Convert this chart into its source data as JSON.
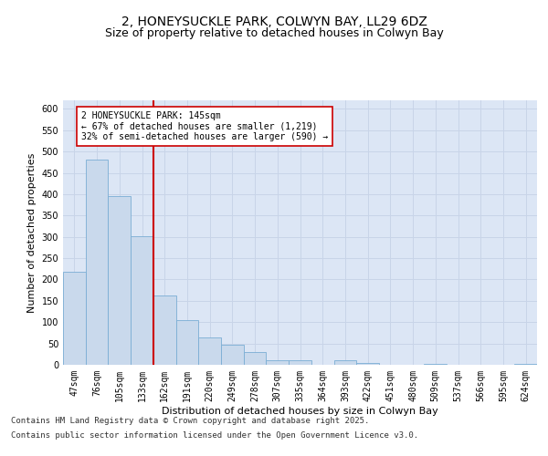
{
  "title_line1": "2, HONEYSUCKLE PARK, COLWYN BAY, LL29 6DZ",
  "title_line2": "Size of property relative to detached houses in Colwyn Bay",
  "xlabel": "Distribution of detached houses by size in Colwyn Bay",
  "ylabel": "Number of detached properties",
  "categories": [
    "47sqm",
    "76sqm",
    "105sqm",
    "133sqm",
    "162sqm",
    "191sqm",
    "220sqm",
    "249sqm",
    "278sqm",
    "307sqm",
    "335sqm",
    "364sqm",
    "393sqm",
    "422sqm",
    "451sqm",
    "480sqm",
    "509sqm",
    "537sqm",
    "566sqm",
    "595sqm",
    "624sqm"
  ],
  "values": [
    218,
    480,
    395,
    302,
    163,
    105,
    65,
    47,
    30,
    10,
    10,
    0,
    10,
    5,
    0,
    0,
    3,
    0,
    0,
    0,
    3
  ],
  "bar_color": "#c9d9ec",
  "bar_edge_color": "#7aadd4",
  "vline_x_index": 3,
  "vline_color": "#cc0000",
  "annotation_text": "2 HONEYSUCKLE PARK: 145sqm\n← 67% of detached houses are smaller (1,219)\n32% of semi-detached houses are larger (590) →",
  "annotation_box_color": "#ffffff",
  "annotation_box_edge": "#cc0000",
  "ylim": [
    0,
    620
  ],
  "yticks": [
    0,
    50,
    100,
    150,
    200,
    250,
    300,
    350,
    400,
    450,
    500,
    550,
    600
  ],
  "grid_color": "#c8d4e8",
  "bg_color": "#dce6f5",
  "footer_line1": "Contains HM Land Registry data © Crown copyright and database right 2025.",
  "footer_line2": "Contains public sector information licensed under the Open Government Licence v3.0.",
  "title_fontsize": 10,
  "subtitle_fontsize": 9,
  "axis_label_fontsize": 8,
  "tick_fontsize": 7,
  "annotation_fontsize": 7,
  "footer_fontsize": 6.5
}
